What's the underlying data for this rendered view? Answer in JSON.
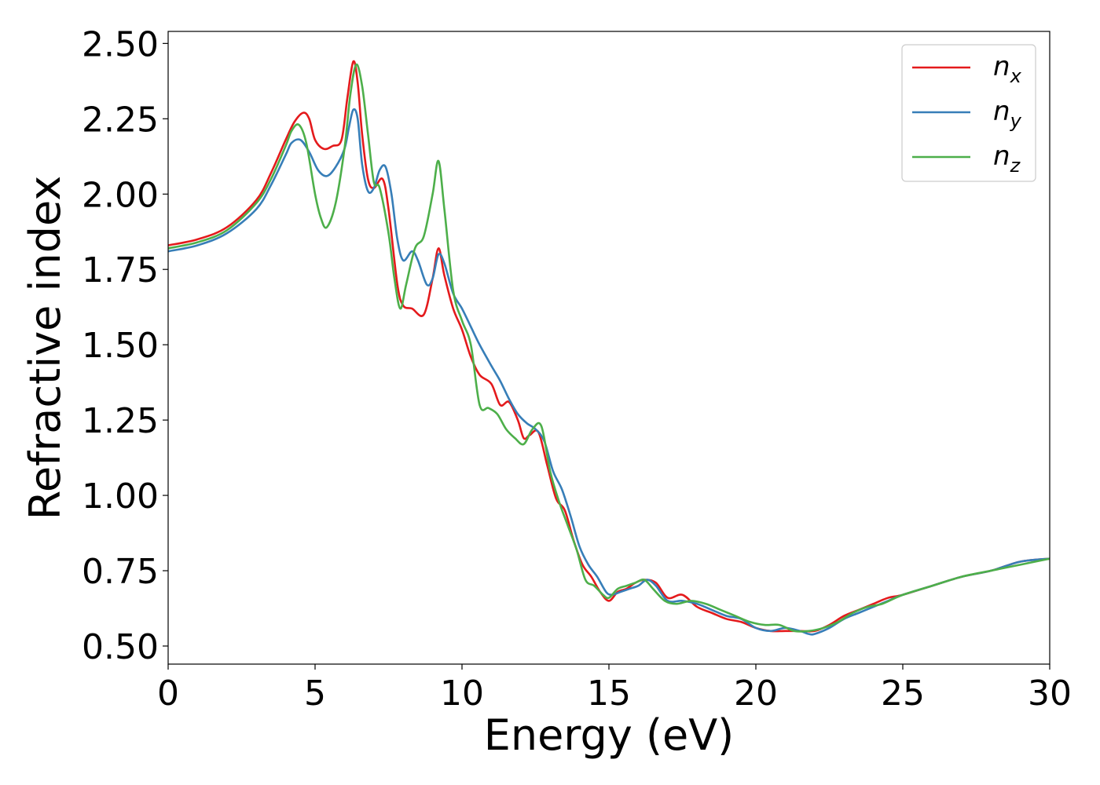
{
  "chart_data": {
    "type": "line",
    "xlabel": "Energy (eV)",
    "ylabel": "Refractive index",
    "xlim": [
      0,
      30
    ],
    "ylim": [
      0.44,
      2.54
    ],
    "xticks": [
      0,
      5,
      10,
      15,
      20,
      25,
      30
    ],
    "xtick_labels": [
      "0",
      "5",
      "10",
      "15",
      "20",
      "25",
      "30"
    ],
    "yticks": [
      0.5,
      0.75,
      1.0,
      1.25,
      1.5,
      1.75,
      2.0,
      2.25,
      2.5
    ],
    "ytick_labels": [
      "0.50",
      "0.75",
      "1.00",
      "1.25",
      "1.50",
      "1.75",
      "2.00",
      "2.25",
      "2.50"
    ],
    "grid": false,
    "legend_position": "top-right",
    "series": [
      {
        "name": "n",
        "subscript": "x",
        "color": "#e41a1c",
        "x": [
          0,
          1,
          2,
          3,
          3.5,
          4,
          4.3,
          4.6,
          4.8,
          5.0,
          5.3,
          5.6,
          5.9,
          6.1,
          6.3,
          6.45,
          6.6,
          6.8,
          7.0,
          7.3,
          7.5,
          7.8,
          8.0,
          8.3,
          8.7,
          9.0,
          9.2,
          9.4,
          9.7,
          10.0,
          10.3,
          10.6,
          11.0,
          11.3,
          11.6,
          11.9,
          12.1,
          12.3,
          12.6,
          12.9,
          13.2,
          13.5,
          13.8,
          14.1,
          14.4,
          14.7,
          15.0,
          15.3,
          15.6,
          15.9,
          16.2,
          16.6,
          17.0,
          17.5,
          18.0,
          18.5,
          19.0,
          19.5,
          20.0,
          20.5,
          21.0,
          21.5,
          22.0,
          22.5,
          23.0,
          23.5,
          24.0,
          24.5,
          25.0,
          26.0,
          27.0,
          28.0,
          29.0,
          30.0
        ],
        "values": [
          1.83,
          1.85,
          1.89,
          1.98,
          2.07,
          2.18,
          2.24,
          2.27,
          2.25,
          2.18,
          2.15,
          2.16,
          2.18,
          2.32,
          2.44,
          2.37,
          2.2,
          2.05,
          2.02,
          2.05,
          1.95,
          1.7,
          1.63,
          1.62,
          1.6,
          1.72,
          1.82,
          1.73,
          1.62,
          1.55,
          1.46,
          1.4,
          1.37,
          1.3,
          1.31,
          1.25,
          1.19,
          1.2,
          1.21,
          1.1,
          0.99,
          0.95,
          0.85,
          0.77,
          0.73,
          0.68,
          0.65,
          0.68,
          0.69,
          0.71,
          0.72,
          0.71,
          0.66,
          0.67,
          0.63,
          0.61,
          0.59,
          0.58,
          0.56,
          0.55,
          0.55,
          0.55,
          0.55,
          0.57,
          0.6,
          0.62,
          0.64,
          0.66,
          0.67,
          0.7,
          0.73,
          0.75,
          0.78,
          0.79
        ]
      },
      {
        "name": "n",
        "subscript": "y",
        "color": "#377eb8",
        "x": [
          0,
          1,
          2,
          3,
          3.5,
          4,
          4.2,
          4.5,
          4.8,
          5.1,
          5.4,
          5.7,
          6.0,
          6.15,
          6.3,
          6.45,
          6.6,
          6.8,
          7.0,
          7.2,
          7.4,
          7.6,
          7.8,
          8.0,
          8.3,
          8.5,
          8.8,
          9.0,
          9.2,
          9.4,
          9.7,
          10.0,
          10.3,
          10.6,
          11.0,
          11.3,
          11.6,
          11.9,
          12.2,
          12.5,
          12.8,
          13.1,
          13.4,
          13.7,
          14.0,
          14.3,
          14.6,
          14.9,
          15.1,
          15.4,
          15.7,
          16.0,
          16.3,
          16.6,
          17.0,
          17.5,
          18.0,
          18.5,
          19.0,
          19.5,
          20.0,
          20.5,
          21.0,
          21.5,
          21.8,
          22.0,
          22.5,
          23.0,
          23.5,
          24.0,
          24.5,
          25.0,
          26.0,
          27.0,
          28.0,
          29.0,
          30.0
        ],
        "values": [
          1.81,
          1.83,
          1.87,
          1.95,
          2.03,
          2.13,
          2.17,
          2.18,
          2.14,
          2.08,
          2.06,
          2.09,
          2.15,
          2.22,
          2.28,
          2.25,
          2.1,
          2.01,
          2.02,
          2.08,
          2.09,
          2.0,
          1.85,
          1.78,
          1.81,
          1.78,
          1.7,
          1.72,
          1.8,
          1.77,
          1.67,
          1.62,
          1.56,
          1.5,
          1.43,
          1.38,
          1.32,
          1.27,
          1.24,
          1.22,
          1.18,
          1.08,
          1.02,
          0.93,
          0.83,
          0.77,
          0.73,
          0.68,
          0.67,
          0.68,
          0.69,
          0.7,
          0.72,
          0.7,
          0.65,
          0.65,
          0.64,
          0.62,
          0.6,
          0.59,
          0.56,
          0.55,
          0.56,
          0.55,
          0.54,
          0.54,
          0.56,
          0.59,
          0.61,
          0.63,
          0.65,
          0.67,
          0.7,
          0.73,
          0.75,
          0.78,
          0.79
        ]
      },
      {
        "name": "n",
        "subscript": "z",
        "color": "#4daf4a",
        "x": [
          0,
          1,
          2,
          3,
          3.5,
          4,
          4.2,
          4.45,
          4.7,
          5.0,
          5.2,
          5.4,
          5.7,
          6.0,
          6.2,
          6.4,
          6.6,
          6.8,
          7.0,
          7.2,
          7.5,
          7.7,
          7.9,
          8.1,
          8.4,
          8.7,
          9.0,
          9.2,
          9.4,
          9.7,
          10.0,
          10.3,
          10.6,
          10.9,
          11.2,
          11.5,
          11.8,
          12.1,
          12.4,
          12.7,
          13.0,
          13.3,
          13.6,
          13.9,
          14.2,
          14.5,
          14.8,
          15.0,
          15.3,
          15.6,
          15.9,
          16.2,
          16.5,
          16.9,
          17.3,
          17.8,
          18.3,
          18.8,
          19.3,
          19.8,
          20.3,
          20.8,
          21.3,
          21.8,
          22.3,
          22.8,
          23.3,
          23.8,
          24.3,
          25.0,
          26.0,
          27.0,
          28.0,
          29.0,
          30.0
        ],
        "values": [
          1.82,
          1.84,
          1.88,
          1.97,
          2.05,
          2.16,
          2.21,
          2.23,
          2.17,
          2.0,
          1.92,
          1.89,
          1.97,
          2.15,
          2.33,
          2.43,
          2.36,
          2.2,
          2.04,
          2.02,
          1.87,
          1.72,
          1.62,
          1.7,
          1.82,
          1.86,
          2.0,
          2.11,
          1.95,
          1.68,
          1.58,
          1.5,
          1.3,
          1.29,
          1.27,
          1.22,
          1.19,
          1.17,
          1.22,
          1.23,
          1.08,
          0.98,
          0.9,
          0.82,
          0.72,
          0.7,
          0.67,
          0.66,
          0.69,
          0.7,
          0.71,
          0.72,
          0.69,
          0.65,
          0.64,
          0.65,
          0.64,
          0.62,
          0.6,
          0.58,
          0.57,
          0.57,
          0.55,
          0.55,
          0.56,
          0.58,
          0.61,
          0.63,
          0.64,
          0.67,
          0.7,
          0.73,
          0.75,
          0.77,
          0.79
        ]
      }
    ]
  }
}
